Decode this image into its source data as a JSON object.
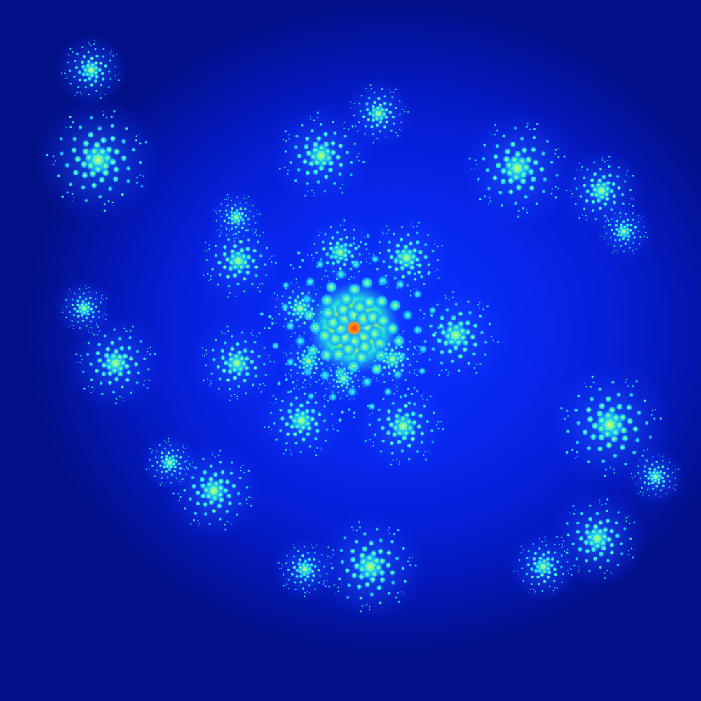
{
  "image": {
    "kind": "julia-set-fractal",
    "palette": {
      "background_dark": "#00108a",
      "background_mid": "#0626e0",
      "glow": "#1f5bff",
      "cyan": "#1ad8ff",
      "green": "#3cffb0",
      "yellow": "#d8ff3a",
      "orange": "#ff9a1a",
      "red": "#ff2a10"
    }
  }
}
